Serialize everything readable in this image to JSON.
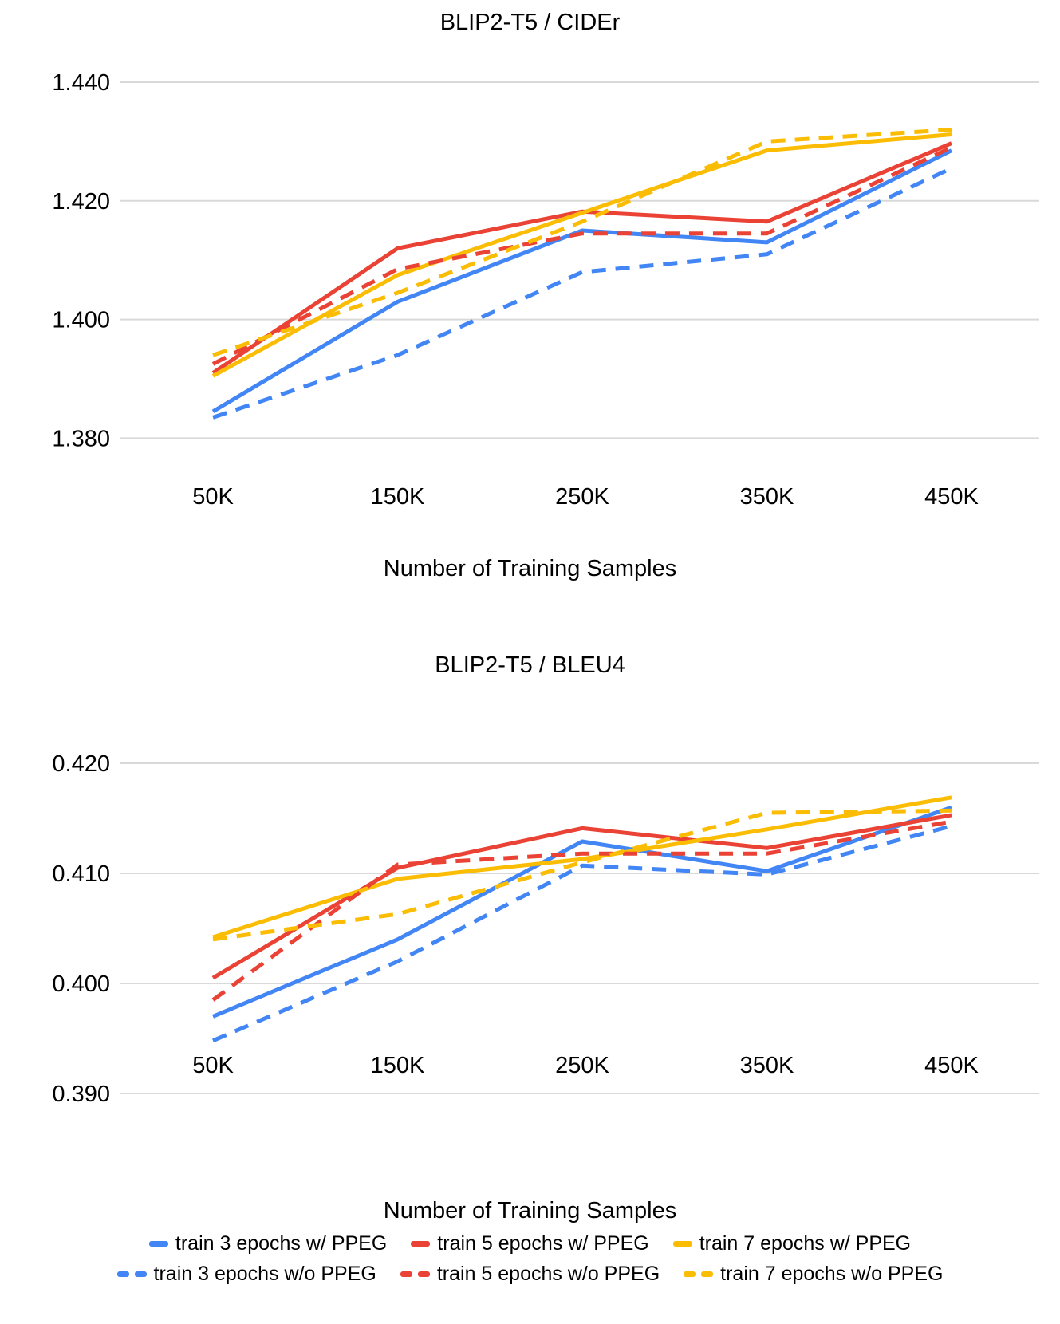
{
  "colors": {
    "blue": "#4285F4",
    "red": "#EA4335",
    "yellow": "#FBBC04",
    "gridline": "#D9D9D9",
    "text": "#000000"
  },
  "chart_data": [
    {
      "type": "line",
      "title": "BLIP2-T5 / CIDEr",
      "xlabel": "Number of Training Samples",
      "categories": [
        "50K",
        "150K",
        "250K",
        "350K",
        "450K"
      ],
      "y_tick_labels": [
        "1.440",
        "1.420",
        "1.400",
        "1.380"
      ],
      "y_tick_values": [
        1.44,
        1.42,
        1.4,
        1.38
      ],
      "ylim": [
        1.376,
        1.444
      ],
      "grid": true,
      "series": [
        {
          "name": "train 3 epochs w/ PPEG",
          "color": "blue",
          "dash": false,
          "values": [
            1.3845,
            1.403,
            1.415,
            1.413,
            1.4285
          ]
        },
        {
          "name": "train 5 epochs w/ PPEG",
          "color": "red",
          "dash": false,
          "values": [
            1.391,
            1.412,
            1.4182,
            1.4165,
            1.4297
          ]
        },
        {
          "name": "train 7 epochs w/ PPEG",
          "color": "yellow",
          "dash": false,
          "values": [
            1.3905,
            1.4075,
            1.418,
            1.4285,
            1.4312
          ]
        },
        {
          "name": "train 3 epochs w/o PPEG",
          "color": "blue",
          "dash": true,
          "values": [
            1.3835,
            1.394,
            1.408,
            1.411,
            1.4255
          ]
        },
        {
          "name": "train 5 epochs w/o PPEG",
          "color": "red",
          "dash": true,
          "values": [
            1.3925,
            1.4085,
            1.4145,
            1.4145,
            1.429
          ]
        },
        {
          "name": "train 7 epochs w/o PPEG",
          "color": "yellow",
          "dash": true,
          "values": [
            1.394,
            1.4045,
            1.4165,
            1.43,
            1.432
          ]
        }
      ]
    },
    {
      "type": "line",
      "title": "BLIP2-T5 / BLEU4",
      "xlabel": "Number of Training Samples",
      "categories": [
        "50K",
        "150K",
        "250K",
        "350K",
        "450K"
      ],
      "y_tick_labels": [
        "0.420",
        "0.410",
        "0.400",
        "0.390"
      ],
      "y_tick_values": [
        0.42,
        0.41,
        0.4,
        0.39
      ],
      "ylim": [
        0.39,
        0.422
      ],
      "grid": true,
      "series": [
        {
          "name": "train 3 epochs w/ PPEG",
          "color": "blue",
          "dash": false,
          "values": [
            0.397,
            0.404,
            0.4129,
            0.4102,
            0.416
          ]
        },
        {
          "name": "train 5 epochs w/ PPEG",
          "color": "red",
          "dash": false,
          "values": [
            0.4005,
            0.4105,
            0.4141,
            0.4123,
            0.4153
          ]
        },
        {
          "name": "train 7 epochs w/ PPEG",
          "color": "yellow",
          "dash": false,
          "values": [
            0.4042,
            0.4095,
            0.4113,
            0.414,
            0.4169
          ]
        },
        {
          "name": "train 3 epochs w/o PPEG",
          "color": "blue",
          "dash": true,
          "values": [
            0.3948,
            0.402,
            0.4107,
            0.4099,
            0.4143
          ]
        },
        {
          "name": "train 5 epochs w/o PPEG",
          "color": "red",
          "dash": true,
          "values": [
            0.3985,
            0.4108,
            0.4118,
            0.4118,
            0.4147
          ]
        },
        {
          "name": "train 7 epochs w/o PPEG",
          "color": "yellow",
          "dash": true,
          "values": [
            0.404,
            0.4063,
            0.411,
            0.4155,
            0.4157
          ]
        }
      ]
    }
  ],
  "legend": {
    "rows": [
      [
        {
          "label": "train 3 epochs w/ PPEG",
          "color": "blue",
          "dash": false
        },
        {
          "label": "train 5 epochs w/ PPEG",
          "color": "red",
          "dash": false
        },
        {
          "label": "train 7 epochs w/ PPEG",
          "color": "yellow",
          "dash": false
        }
      ],
      [
        {
          "label": "train 3 epochs w/o PPEG",
          "color": "blue",
          "dash": true
        },
        {
          "label": "train 5 epochs w/o PPEG",
          "color": "red",
          "dash": true
        },
        {
          "label": "train 7 epochs w/o PPEG",
          "color": "yellow",
          "dash": true
        }
      ]
    ]
  }
}
